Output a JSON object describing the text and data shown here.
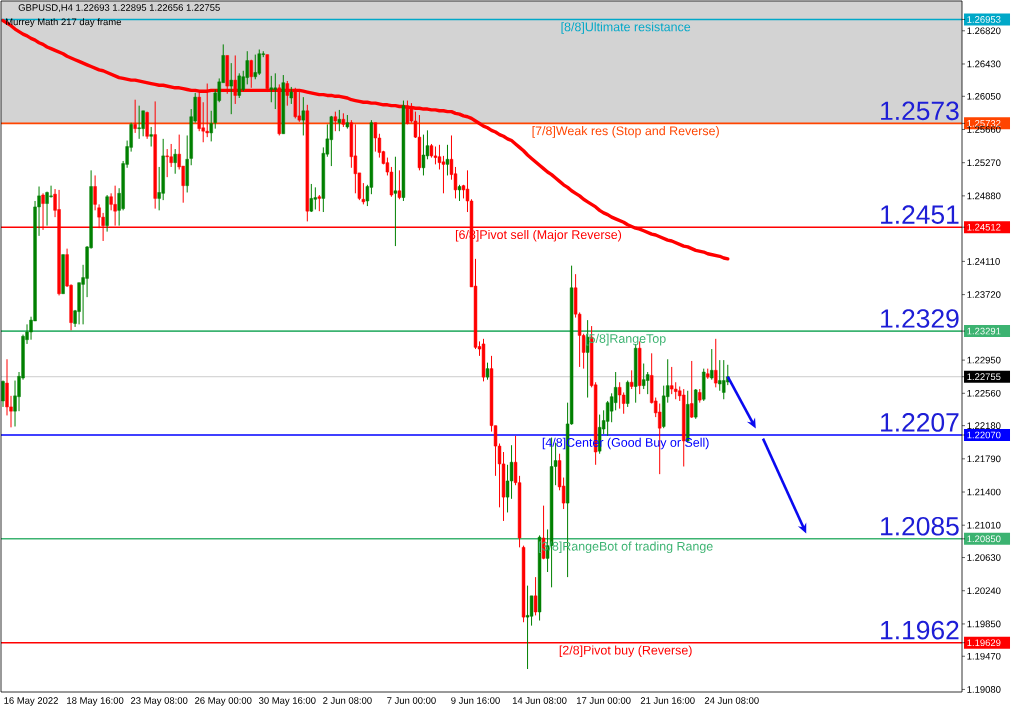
{
  "chart_data": {
    "type": "candlestick",
    "title": "GBPUSD,H4 1.22693 1.22895 1.22656 1.22755",
    "subtitle": "Murrey Math 217 day frame",
    "categories": [
      null,
      null,
      null,
      null,
      null,
      null,
      null,
      "16 May 2022",
      null,
      null,
      null,
      null,
      null,
      null,
      null,
      null,
      null,
      null,
      null,
      null,
      null,
      null,
      null,
      "18 May 16:00",
      null,
      null,
      null,
      null,
      null,
      null,
      null,
      null,
      null,
      null,
      null,
      null,
      null,
      null,
      null,
      "23 May 08:00",
      null,
      null,
      null,
      null,
      null,
      null,
      null,
      null,
      null,
      null,
      null,
      null,
      null,
      null,
      null,
      "26 May 00:00",
      null,
      null,
      null,
      null,
      null,
      null,
      null,
      null,
      null,
      null,
      null,
      null,
      null,
      null,
      null,
      "30 May 16:00",
      null,
      null,
      null,
      null,
      null,
      null,
      null,
      null,
      null,
      null,
      null,
      null,
      null,
      null,
      "2 Jun 08:00",
      null,
      null,
      null,
      null,
      null,
      null,
      null,
      null,
      null,
      null,
      null,
      null,
      null,
      null,
      null,
      "7 Jun 00:00",
      null,
      null,
      null,
      null,
      null,
      null,
      null,
      null,
      null,
      null,
      null,
      null,
      null,
      null,
      null,
      "9 Jun 16:00",
      null,
      null,
      null,
      null,
      null,
      null,
      null,
      null,
      null,
      null,
      null,
      null,
      null,
      null,
      null,
      "14 Jun 08:00",
      null,
      null,
      null,
      null,
      null,
      null,
      null,
      null,
      null,
      null,
      null,
      null,
      null,
      null,
      null,
      "17 Jun 00:00",
      null,
      null,
      null,
      null,
      null,
      null,
      null,
      null,
      null,
      null,
      null,
      null,
      null,
      null,
      null,
      "21 Jun 16:00",
      null,
      null,
      null,
      null,
      null,
      null,
      null,
      null,
      null,
      null,
      null,
      null,
      null,
      null,
      null,
      "24 Jun 08:00",
      null,
      null,
      null,
      null,
      null,
      null,
      null,
      null,
      null,
      null,
      null,
      null,
      null,
      null,
      null,
      null,
      null,
      null,
      null,
      null,
      null,
      null,
      null,
      null,
      null,
      null,
      null,
      null,
      null,
      null,
      null,
      null,
      null,
      null,
      null,
      null,
      null,
      null,
      null,
      null,
      null,
      null,
      null,
      null,
      null,
      null,
      null,
      null,
      null,
      null,
      null,
      null,
      null,
      null,
      null,
      null,
      null
    ],
    "ohlc": [
      [
        1.2247,
        1.2271,
        1.224,
        1.227
      ],
      [
        1.2268,
        1.2296,
        1.223,
        1.224
      ],
      [
        1.224,
        1.2253,
        1.2216,
        1.2235
      ],
      [
        1.2235,
        1.2271,
        1.2217,
        1.2253
      ],
      [
        1.2252,
        1.2281,
        1.2235,
        1.2276
      ],
      [
        1.2274,
        1.2325,
        1.2272,
        1.2323
      ],
      [
        1.2319,
        1.2337,
        1.2314,
        1.2328
      ],
      [
        1.2328,
        1.2346,
        1.2319,
        1.2342
      ],
      [
        1.2341,
        1.2482,
        1.2341,
        1.2475
      ],
      [
        1.2475,
        1.2499,
        1.2441,
        1.2488
      ],
      [
        1.2489,
        1.2491,
        1.2448,
        1.2479
      ],
      [
        1.2479,
        1.2493,
        1.2453,
        1.2492
      ],
      [
        1.2487,
        1.25,
        1.2486,
        1.2488
      ],
      [
        1.249,
        1.2496,
        1.2463,
        1.2471
      ],
      [
        1.2472,
        1.2495,
        1.2371,
        1.2373
      ],
      [
        1.2373,
        1.2419,
        1.2373,
        1.2419
      ],
      [
        1.2419,
        1.2426,
        1.2381,
        1.2382
      ],
      [
        1.2383,
        1.2384,
        1.233,
        1.2339
      ],
      [
        1.2338,
        1.2354,
        1.2334,
        1.2353
      ],
      [
        1.2352,
        1.2386,
        1.2337,
        1.2386
      ],
      [
        1.2384,
        1.2407,
        1.2337,
        1.2392
      ],
      [
        1.2391,
        1.2429,
        1.2369,
        1.2428
      ],
      [
        1.2427,
        1.2518,
        1.2426,
        1.2499
      ],
      [
        1.2499,
        1.2512,
        1.2471,
        1.2478
      ],
      [
        1.2474,
        1.2478,
        1.245,
        1.2463
      ],
      [
        1.2463,
        1.2468,
        1.2435,
        1.2453
      ],
      [
        1.2453,
        1.2489,
        1.2446,
        1.2487
      ],
      [
        1.2487,
        1.2491,
        1.2471,
        1.2478
      ],
      [
        1.2478,
        1.25,
        1.2453,
        1.247
      ],
      [
        1.2471,
        1.2497,
        1.2453,
        1.2491
      ],
      [
        1.2473,
        1.2529,
        1.2471,
        1.2526
      ],
      [
        1.2525,
        1.2553,
        1.2521,
        1.2546
      ],
      [
        1.2545,
        1.2574,
        1.254,
        1.2572
      ],
      [
        1.2572,
        1.2601,
        1.2562,
        1.2567
      ],
      [
        1.2567,
        1.2594,
        1.2555,
        1.2568
      ],
      [
        1.2567,
        1.2588,
        1.2558,
        1.2588
      ],
      [
        1.2586,
        1.2587,
        1.2555,
        1.2558
      ],
      [
        1.2558,
        1.2569,
        1.2546,
        1.256
      ],
      [
        1.256,
        1.2599,
        1.2473,
        1.2485
      ],
      [
        1.2485,
        1.2522,
        1.2471,
        1.2492
      ],
      [
        1.2491,
        1.2555,
        1.2483,
        1.2535
      ],
      [
        1.2535,
        1.2543,
        1.251,
        1.2534
      ],
      [
        1.2534,
        1.2549,
        1.2522,
        1.2527
      ],
      [
        1.2527,
        1.2543,
        1.2514,
        1.2537
      ],
      [
        1.2537,
        1.256,
        1.2519,
        1.2522
      ],
      [
        1.2523,
        1.2523,
        1.248,
        1.25
      ],
      [
        1.25,
        1.2559,
        1.2492,
        1.2531
      ],
      [
        1.2532,
        1.259,
        1.2524,
        1.2581
      ],
      [
        1.2576,
        1.2609,
        1.2574,
        1.2604
      ],
      [
        1.2604,
        1.261,
        1.2564,
        1.2567
      ],
      [
        1.2568,
        1.2598,
        1.2551,
        1.2564
      ],
      [
        1.2564,
        1.262,
        1.2557,
        1.2562
      ],
      [
        1.2562,
        1.2588,
        1.2552,
        1.2573
      ],
      [
        1.2574,
        1.2613,
        1.2567,
        1.2609
      ],
      [
        1.26,
        1.2626,
        1.2598,
        1.2622
      ],
      [
        1.2621,
        1.2666,
        1.2621,
        1.2653
      ],
      [
        1.2653,
        1.2653,
        1.2608,
        1.2617
      ],
      [
        1.2617,
        1.2644,
        1.2584,
        1.2624
      ],
      [
        1.2624,
        1.2653,
        1.2596,
        1.2606
      ],
      [
        1.2606,
        1.2632,
        1.2603,
        1.2629
      ],
      [
        1.2613,
        1.2635,
        1.2611,
        1.2628
      ],
      [
        1.2627,
        1.2658,
        1.2619,
        1.2647
      ],
      [
        1.2647,
        1.2648,
        1.2615,
        1.2628
      ],
      [
        1.2628,
        1.2654,
        1.2625,
        1.2633
      ],
      [
        1.2632,
        1.266,
        1.263,
        1.2655
      ],
      [
        1.2654,
        1.2658,
        1.2651,
        1.2655
      ],
      [
        1.2654,
        1.2654,
        1.261,
        1.2614
      ],
      [
        1.2613,
        1.2629,
        1.2598,
        1.2615
      ],
      [
        1.2613,
        1.2632,
        1.259,
        1.2615
      ],
      [
        1.2615,
        1.2619,
        1.2559,
        1.2561
      ],
      [
        1.2561,
        1.263,
        1.2561,
        1.2621
      ],
      [
        1.262,
        1.2623,
        1.2594,
        1.2606
      ],
      [
        1.2603,
        1.2616,
        1.2596,
        1.261
      ],
      [
        1.2611,
        1.2615,
        1.2579,
        1.2581
      ],
      [
        1.2582,
        1.261,
        1.2575,
        1.2577
      ],
      [
        1.2577,
        1.2604,
        1.2559,
        1.2588
      ],
      [
        1.2588,
        1.2595,
        1.2458,
        1.247
      ],
      [
        1.247,
        1.2502,
        1.2469,
        1.2485
      ],
      [
        1.2484,
        1.2498,
        1.2472,
        1.2486
      ],
      [
        1.2487,
        1.2489,
        1.247,
        1.2485
      ],
      [
        1.2485,
        1.2545,
        1.2469,
        1.2538
      ],
      [
        1.2537,
        1.2572,
        1.2534,
        1.2555
      ],
      [
        1.2554,
        1.2582,
        1.2523,
        1.2581
      ],
      [
        1.2581,
        1.2587,
        1.2564,
        1.2576
      ],
      [
        1.2574,
        1.2589,
        1.2564,
        1.2578
      ],
      [
        1.2578,
        1.2585,
        1.2569,
        1.2572
      ],
      [
        1.2569,
        1.2583,
        1.2567,
        1.2574
      ],
      [
        1.2574,
        1.2577,
        1.2521,
        1.2534
      ],
      [
        1.2535,
        1.2572,
        1.2491,
        1.2514
      ],
      [
        1.2515,
        1.2515,
        1.2483,
        1.2485
      ],
      [
        1.2484,
        1.2503,
        1.2478,
        1.2481
      ],
      [
        1.2482,
        1.2501,
        1.2476,
        1.2499
      ],
      [
        1.2498,
        1.2577,
        1.249,
        1.2574
      ],
      [
        1.2574,
        1.2574,
        1.254,
        1.2556
      ],
      [
        1.2556,
        1.2561,
        1.2533,
        1.2539
      ],
      [
        1.254,
        1.2541,
        1.2525,
        1.2526
      ],
      [
        1.2527,
        1.2533,
        1.2512,
        1.2516
      ],
      [
        1.2516,
        1.2522,
        1.2487,
        1.2489
      ],
      [
        1.2491,
        1.2534,
        1.2429,
        1.2494
      ],
      [
        1.2494,
        1.2518,
        1.2484,
        1.2486
      ],
      [
        1.2486,
        1.26,
        1.2482,
        1.2594
      ],
      [
        1.2594,
        1.26,
        1.2572,
        1.2573
      ],
      [
        1.2591,
        1.2597,
        1.2574,
        1.2576
      ],
      [
        1.2576,
        1.2587,
        1.2556,
        1.2557
      ],
      [
        1.2557,
        1.2583,
        1.2518,
        1.2521
      ],
      [
        1.2521,
        1.256,
        1.2512,
        1.2536
      ],
      [
        1.2535,
        1.2565,
        1.2531,
        1.2547
      ],
      [
        1.2547,
        1.2549,
        1.2533,
        1.2535
      ],
      [
        1.2535,
        1.2546,
        1.2525,
        1.2533
      ],
      [
        1.2534,
        1.2548,
        1.2519,
        1.2527
      ],
      [
        1.2528,
        1.2535,
        1.2491,
        1.2525
      ],
      [
        1.2525,
        1.2548,
        1.2512,
        1.2531
      ],
      [
        1.2531,
        1.2559,
        1.2507,
        1.2513
      ],
      [
        1.2514,
        1.2522,
        1.2485,
        1.2495
      ],
      [
        1.2495,
        1.2501,
        1.2482,
        1.2499
      ],
      [
        1.25,
        1.2501,
        1.2485,
        1.2495
      ],
      [
        1.2496,
        1.2518,
        1.2469,
        1.2482
      ],
      [
        1.2482,
        1.2484,
        1.2381,
        1.2381
      ],
      [
        1.2382,
        1.2414,
        1.2308,
        1.231
      ],
      [
        1.2311,
        1.2317,
        1.23,
        1.2308
      ],
      [
        1.2314,
        1.232,
        1.227,
        1.2275
      ],
      [
        1.2275,
        1.2292,
        1.2272,
        1.2285
      ],
      [
        1.2285,
        1.23,
        1.2211,
        1.2218
      ],
      [
        1.2218,
        1.2218,
        1.2159,
        1.2194
      ],
      [
        1.2194,
        1.2197,
        1.2122,
        1.2173
      ],
      [
        1.2173,
        1.2187,
        1.2106,
        1.2134
      ],
      [
        1.2134,
        1.2172,
        1.2116,
        1.2153
      ],
      [
        1.2153,
        1.2195,
        1.2132,
        1.2175
      ],
      [
        1.2175,
        1.2206,
        1.2148,
        1.2151
      ],
      [
        1.2151,
        1.2159,
        1.2075,
        1.2086
      ],
      [
        1.2075,
        1.2077,
        1.1987,
        1.1993
      ],
      [
        1.1993,
        1.203,
        1.1932,
        1.1995
      ],
      [
        1.1994,
        1.2018,
        1.1983,
        1.2018
      ],
      [
        1.2018,
        1.204,
        1.1995,
        1.1999
      ],
      [
        1.1999,
        1.2089,
        1.1989,
        1.2087
      ],
      [
        1.2086,
        1.2124,
        1.2061,
        1.2062
      ],
      [
        1.2062,
        1.2096,
        1.2046,
        1.2077
      ],
      [
        1.2077,
        1.2204,
        1.2028,
        1.217
      ],
      [
        1.217,
        1.2198,
        1.2148,
        1.2177
      ],
      [
        1.2177,
        1.2185,
        1.2142,
        1.2146
      ],
      [
        1.2147,
        1.2157,
        1.212,
        1.2127
      ],
      [
        1.2127,
        1.2245,
        1.204,
        1.222
      ],
      [
        1.222,
        1.2406,
        1.2219,
        1.238
      ],
      [
        1.238,
        1.2396,
        1.2345,
        1.2349
      ],
      [
        1.2349,
        1.2351,
        1.2287,
        1.2324
      ],
      [
        1.2324,
        1.2326,
        1.2285,
        1.2304
      ],
      [
        1.2304,
        1.2342,
        1.2251,
        1.2322
      ],
      [
        1.2322,
        1.2335,
        1.2263,
        1.2265
      ],
      [
        1.2266,
        1.2269,
        1.2172,
        1.2187
      ],
      [
        1.2188,
        1.2231,
        1.2185,
        1.2216
      ],
      [
        1.2214,
        1.2236,
        1.2208,
        1.2224
      ],
      [
        1.2223,
        1.2247,
        1.2206,
        1.2245
      ],
      [
        1.2235,
        1.2256,
        1.2222,
        1.2252
      ],
      [
        1.2245,
        1.2281,
        1.2236,
        1.2263
      ],
      [
        1.2263,
        1.2269,
        1.2238,
        1.2254
      ],
      [
        1.2254,
        1.2257,
        1.2232,
        1.2244
      ],
      [
        1.2244,
        1.2271,
        1.224,
        1.2269
      ],
      [
        1.2269,
        1.2283,
        1.2261,
        1.2264
      ],
      [
        1.2264,
        1.2314,
        1.2245,
        1.2309
      ],
      [
        1.2309,
        1.2317,
        1.2255,
        1.2265
      ],
      [
        1.2265,
        1.2291,
        1.2261,
        1.2272
      ],
      [
        1.2271,
        1.2281,
        1.2255,
        1.2278
      ],
      [
        1.2277,
        1.2303,
        1.2244,
        1.2245
      ],
      [
        1.2247,
        1.2251,
        1.2228,
        1.2233
      ],
      [
        1.2234,
        1.2244,
        1.2161,
        1.2215
      ],
      [
        1.2217,
        1.2265,
        1.2215,
        1.2253
      ],
      [
        1.2252,
        1.2296,
        1.2245,
        1.2265
      ],
      [
        1.2265,
        1.2287,
        1.2255,
        1.2261
      ],
      [
        1.2261,
        1.2269,
        1.2249,
        1.2258
      ],
      [
        1.2259,
        1.2264,
        1.2247,
        1.2253
      ],
      [
        1.2254,
        1.2261,
        1.217,
        1.22
      ],
      [
        1.22,
        1.2259,
        1.2198,
        1.2243
      ],
      [
        1.2244,
        1.2294,
        1.2227,
        1.2228
      ],
      [
        1.2228,
        1.2261,
        1.2226,
        1.226
      ],
      [
        1.2257,
        1.2261,
        1.2245,
        1.2248
      ],
      [
        1.2249,
        1.2285,
        1.2247,
        1.2281
      ],
      [
        1.2279,
        1.2285,
        1.2273,
        1.2275
      ],
      [
        1.2274,
        1.2308,
        1.2272,
        1.2283
      ],
      [
        1.2283,
        1.232,
        1.2263,
        1.2268
      ],
      [
        1.2267,
        1.2295,
        1.2259,
        1.2271
      ],
      [
        1.2257,
        1.2295,
        1.2249,
        1.2271
      ],
      [
        1.22693,
        1.22895,
        1.22656,
        1.22755
      ],
      null,
      null,
      null,
      null,
      null,
      null,
      null,
      null,
      null,
      null,
      null,
      null,
      null,
      null,
      null,
      null,
      null,
      null,
      null,
      null,
      null,
      null,
      null,
      null,
      null,
      null,
      null,
      null,
      null,
      null,
      null,
      null,
      null,
      null,
      null,
      null,
      null,
      null,
      null,
      null,
      null,
      null,
      null,
      null,
      null,
      null,
      null,
      null,
      null,
      null,
      null,
      null,
      null,
      null,
      null,
      null,
      null,
      null
    ],
    "colors": [
      "#008000",
      "#ff0000",
      "#ff0000",
      "#008000",
      "#008000",
      "#008000",
      "#008000",
      "#008000",
      "#008000",
      "#008000",
      "#ff0000",
      "#008000",
      "#008000",
      "#ff0000",
      "#ff0000",
      "#008000",
      "#ff0000",
      "#ff0000",
      "#008000",
      "#008000",
      "#008000",
      "#008000",
      "#008000",
      "#ff0000",
      "#ff0000",
      "#ff0000",
      "#008000",
      "#ff0000",
      "#ff0000",
      "#008000",
      "#008000",
      "#008000",
      "#008000",
      "#ff0000",
      "#008000",
      "#008000",
      "#ff0000",
      "#008000",
      "#ff0000",
      "#008000",
      "#008000",
      "#ff0000",
      "#ff0000",
      "#008000",
      "#ff0000",
      "#ff0000",
      "#008000",
      "#008000",
      "#008000",
      "#ff0000",
      "#ff0000",
      "#ff0000",
      "#008000",
      "#008000",
      "#008000",
      "#008000",
      "#ff0000",
      "#008000",
      "#ff0000",
      "#008000",
      "#008000",
      "#008000",
      "#ff0000",
      "#008000",
      "#008000",
      "#008000",
      "#ff0000",
      "#008000",
      "#008000",
      "#ff0000",
      "#008000",
      "#ff0000",
      "#008000",
      "#ff0000",
      "#ff0000",
      "#008000",
      "#ff0000",
      "#008000",
      "#008000",
      "#ff0000",
      "#008000",
      "#008000",
      "#008000",
      "#ff0000",
      "#008000",
      "#ff0000",
      "#008000",
      "#ff0000",
      "#ff0000",
      "#ff0000",
      "#ff0000",
      "#008000",
      "#008000",
      "#ff0000",
      "#ff0000",
      "#ff0000",
      "#ff0000",
      "#ff0000",
      "#008000",
      "#ff0000",
      "#008000",
      "#ff0000",
      "#ff0000",
      "#ff0000",
      "#ff0000",
      "#008000",
      "#008000",
      "#ff0000",
      "#ff0000",
      "#ff0000",
      "#ff0000",
      "#008000",
      "#ff0000",
      "#ff0000",
      "#008000",
      "#ff0000",
      "#ff0000",
      "#ff0000",
      "#ff0000",
      "#ff0000",
      "#ff0000",
      "#008000",
      "#ff0000",
      "#ff0000",
      "#ff0000",
      "#ff0000",
      "#008000",
      "#008000",
      "#ff0000",
      "#ff0000",
      "#ff0000",
      "#008000",
      "#008000",
      "#ff0000",
      "#008000",
      "#ff0000",
      "#008000",
      "#008000",
      "#008000",
      "#ff0000",
      "#ff0000",
      "#008000",
      "#008000",
      "#ff0000",
      "#ff0000",
      "#ff0000",
      "#008000",
      "#ff0000",
      "#ff0000",
      "#008000",
      "#008000",
      "#008000",
      "#008000",
      "#008000",
      "#ff0000",
      "#ff0000",
      "#008000",
      "#ff0000",
      "#008000",
      "#ff0000",
      "#008000",
      "#008000",
      "#ff0000",
      "#ff0000",
      "#ff0000",
      "#008000",
      "#008000",
      "#ff0000",
      "#ff0000",
      "#ff0000",
      "#ff0000",
      "#008000",
      "#ff0000",
      "#008000",
      "#ff0000",
      "#008000",
      "#ff0000",
      "#008000",
      "#ff0000",
      "#008000",
      "#008000",
      "#008000",
      null,
      null,
      null,
      null,
      null,
      null,
      null,
      null,
      null,
      null,
      null,
      null,
      null,
      null,
      null,
      null,
      null,
      null,
      null,
      null,
      null,
      null,
      null,
      null,
      null,
      null,
      null,
      null,
      null,
      null,
      null,
      null,
      null,
      null,
      null,
      null,
      null,
      null,
      null,
      null,
      null,
      null,
      null,
      null,
      null,
      null,
      null,
      null,
      null,
      null,
      null,
      null,
      null,
      null,
      null,
      null,
      null,
      null
    ],
    "series": [
      {
        "type": "line",
        "color": "#ff0000",
        "values": [
          1.2694,
          1.2691,
          1.2688,
          1.2684,
          1.2681,
          1.2678,
          1.2676,
          1.2673,
          1.2671,
          1.2668,
          1.2666,
          1.2663,
          1.2661,
          1.2659,
          1.2657,
          1.2655,
          1.2652,
          1.265,
          1.2648,
          1.2646,
          1.2644,
          1.2642,
          1.264,
          1.2638,
          1.2636,
          1.2635,
          1.2633,
          1.2631,
          1.2629,
          1.2627,
          1.2626,
          1.2625,
          1.2624,
          1.2624,
          1.2623,
          1.2622,
          1.2621,
          1.262,
          1.2619,
          1.2618,
          1.2618,
          1.2617,
          1.2616,
          1.2615,
          1.2615,
          1.2614,
          1.2613,
          1.2612,
          1.2612,
          1.2611,
          1.2611,
          1.2611,
          1.2612,
          1.2612,
          1.2612,
          1.2612,
          1.2612,
          1.2612,
          1.2612,
          1.2612,
          1.2612,
          1.2612,
          1.2612,
          1.2612,
          1.2612,
          1.2612,
          1.2612,
          1.2612,
          1.2612,
          1.2612,
          1.2612,
          1.2612,
          1.2612,
          1.2612,
          1.2612,
          1.2611,
          1.261,
          1.2609,
          1.2608,
          1.2607,
          1.2607,
          1.2606,
          1.2606,
          1.2605,
          1.2605,
          1.2604,
          1.2603,
          1.2601,
          1.26,
          1.2599,
          1.2598,
          1.2598,
          1.2597,
          1.2597,
          1.2596,
          1.2595,
          1.2595,
          1.2594,
          1.2594,
          1.2593,
          1.2593,
          1.2592,
          1.2592,
          1.2591,
          1.2591,
          1.259,
          1.259,
          1.2589,
          1.2589,
          1.2588,
          1.2588,
          1.2587,
          1.2587,
          1.2585,
          1.2584,
          1.2582,
          1.2581,
          1.2579,
          1.2576,
          1.2573,
          1.257,
          1.2568,
          1.2565,
          1.2563,
          1.256,
          1.2558,
          1.2555,
          1.2553,
          1.2549,
          1.2545,
          1.2541,
          1.2536,
          1.2532,
          1.2528,
          1.2524,
          1.252,
          1.2516,
          1.2513,
          1.2509,
          1.2505,
          1.2501,
          1.2498,
          1.2494,
          1.2491,
          1.2488,
          1.2484,
          1.2481,
          1.2478,
          1.2475,
          1.2471,
          1.2468,
          1.2466,
          1.2463,
          1.2461,
          1.2459,
          1.2457,
          1.2454,
          1.2452,
          1.245,
          1.2449,
          1.2447,
          1.2445,
          1.2443,
          1.2442,
          1.244,
          1.2438,
          1.2436,
          1.2435,
          1.2433,
          1.2431,
          1.2429,
          1.2428,
          1.2426,
          1.2424,
          1.2423,
          1.2422,
          1.242,
          1.2419,
          1.2418,
          1.2417,
          1.2415,
          1.2414,
          null,
          null,
          null,
          null,
          null,
          null,
          null,
          null,
          null,
          null,
          null,
          null,
          null,
          null,
          null,
          null,
          null,
          null,
          null,
          null,
          null,
          null,
          null,
          null,
          null,
          null,
          null,
          null,
          null,
          null,
          null,
          null,
          null,
          null,
          null,
          null,
          null,
          null,
          null,
          null,
          null,
          null,
          null,
          null,
          null,
          null,
          null,
          null,
          null,
          null,
          null,
          null,
          null,
          null,
          null,
          null,
          null,
          null
        ]
      }
    ],
    "ylim": [
      1.1905,
      1.2717
    ],
    "yticks": [
      {
        "value": 1.26953,
        "label": "1.26953"
      },
      {
        "value": 1.2682,
        "label": "1.26820"
      },
      {
        "value": 1.2643,
        "label": "1.26430"
      },
      {
        "value": 1.2605,
        "label": "1.26050"
      },
      {
        "value": 1.25732,
        "label": "1.25732"
      },
      {
        "value": 1.2566,
        "label": "1.25660"
      },
      {
        "value": 1.2527,
        "label": "1.25270"
      },
      {
        "value": 1.2488,
        "label": "1.24880"
      },
      {
        "value": 1.24512,
        "label": "1.24512"
      },
      {
        "value": 1.2411,
        "label": "1.24110"
      },
      {
        "value": 1.2372,
        "label": "1.23720"
      },
      {
        "value": 1.23291,
        "label": "1.23291"
      },
      {
        "value": 1.2295,
        "label": "1.22950"
      },
      {
        "value": 1.22755,
        "label": "1.22755"
      },
      {
        "value": 1.2256,
        "label": "1.22560"
      },
      {
        "value": 1.2218,
        "label": "1.22180"
      },
      {
        "value": 1.2207,
        "label": "1.22070"
      },
      {
        "value": 1.2179,
        "label": "1.21790"
      },
      {
        "value": 1.214,
        "label": "1.21400"
      },
      {
        "value": 1.2101,
        "label": "1.21010"
      },
      {
        "value": 1.2085,
        "label": "1.20850"
      },
      {
        "value": 1.2063,
        "label": "1.20630"
      },
      {
        "value": 1.2024,
        "label": "1.20240"
      },
      {
        "value": 1.1985,
        "label": "1.19850"
      },
      {
        "value": 1.19629,
        "label": "1.19629"
      },
      {
        "value": 1.1947,
        "label": "1.19470"
      },
      {
        "value": 1.1908,
        "label": "1.19080"
      }
    ],
    "bands": [
      {
        "axis": "y",
        "from": 1.25732,
        "to": 1.2717,
        "color": "#d3d3d3"
      }
    ],
    "ref_lines": [
      {
        "axis": "y",
        "value": 1.26953,
        "label": "[8/8]Ultimate resistance",
        "color": "#00a8c8"
      },
      {
        "axis": "y",
        "value": 1.25732,
        "label": "[7/8]Weak res (Stop and Reverse)",
        "color": "#ff4500"
      },
      {
        "axis": "y",
        "value": 1.24512,
        "label": "[6/8]Pivot sell (Major Reverse)",
        "color": "#ff0000"
      },
      {
        "axis": "y",
        "value": 1.23291,
        "label": "[5/8]RangeTop",
        "color": "#3cb371"
      },
      {
        "axis": "y",
        "value": 1.22755,
        "color": "#c0c0c0"
      },
      {
        "axis": "y",
        "value": 1.2207,
        "label": "[4/8]Center (Good Buy or Sell)",
        "color": "#0000ff"
      },
      {
        "axis": "y",
        "value": 1.2085,
        "label": "[3/8]RangeBot of trading Range",
        "color": "#3cb371"
      },
      {
        "axis": "y",
        "value": 1.19629,
        "label": "[2/8]Pivot buy (Reverse)",
        "color": "#ff0000"
      }
    ],
    "annotations": [
      {
        "text": "1.2573",
        "y": 1.25732
      },
      {
        "text": "1.2451",
        "y": 1.24512
      },
      {
        "text": "1.2329",
        "y": 1.23291
      },
      {
        "text": "1.2207",
        "y": 1.2207
      },
      {
        "text": "1.2085",
        "y": 1.2085
      },
      {
        "text": "1.1962",
        "y": 1.19629
      }
    ]
  }
}
